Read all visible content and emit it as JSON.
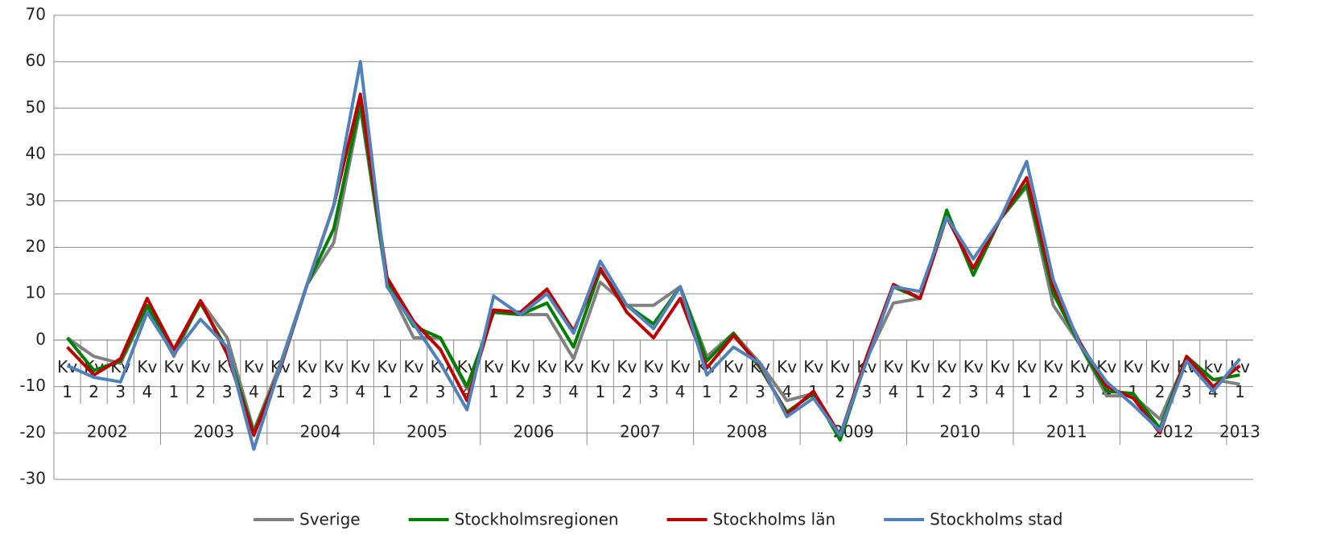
{
  "chart_data": {
    "type": "line",
    "groups": [
      {
        "name": "2002",
        "categories": [
          "Kv 1",
          "Kv 2",
          "Kv 3",
          "Kv 4"
        ]
      },
      {
        "name": "2003",
        "categories": [
          "Kv 1",
          "Kv 2",
          "Kv 3",
          "Kv 4"
        ]
      },
      {
        "name": "2004",
        "categories": [
          "Kv 1",
          "Kv 2",
          "Kv 3",
          "Kv 4"
        ]
      },
      {
        "name": "2005",
        "categories": [
          "Kv 1",
          "Kv 2",
          "Kv 3",
          "Kv 4"
        ]
      },
      {
        "name": "2006",
        "categories": [
          "Kv 1",
          "Kv 2",
          "Kv 3",
          "Kv 4"
        ]
      },
      {
        "name": "2007",
        "categories": [
          "Kv 1",
          "Kv 2",
          "Kv 3",
          "Kv 4"
        ]
      },
      {
        "name": "2008",
        "categories": [
          "Kv 1",
          "Kv 2",
          "Kv 3",
          "Kv 4"
        ]
      },
      {
        "name": "2009",
        "categories": [
          "Kv 1",
          "Kv 2",
          "Kv 3",
          "Kv 4"
        ]
      },
      {
        "name": "2010",
        "categories": [
          "Kv 1",
          "Kv 2",
          "Kv 3",
          "Kv 4"
        ]
      },
      {
        "name": "2011",
        "categories": [
          "Kv 1",
          "Kv 2",
          "Kv 3",
          "Kv 4"
        ]
      },
      {
        "name": "2012",
        "categories": [
          "Kv 1",
          "Kv 2",
          "Kv 3",
          "kv 4"
        ]
      },
      {
        "name": "2013",
        "categories": [
          "Kv 1"
        ]
      }
    ],
    "series": [
      {
        "name": "Sverige",
        "color": "#808080",
        "values": [
          0.5,
          -3.5,
          -5,
          7,
          -3.5,
          8.5,
          0.5,
          -19.5,
          -5,
          12,
          21,
          50,
          12,
          0.5,
          0.5,
          -10.5,
          6,
          5.5,
          5.5,
          -4,
          12.5,
          7.5,
          7.5,
          11.5,
          -3.5,
          1.5,
          -5,
          -13,
          -11.5,
          -21,
          -4,
          8,
          9,
          27.5,
          14,
          26,
          33,
          7.5,
          -1,
          -12,
          -12,
          -17,
          -4,
          -8.5,
          -9.5
        ]
      },
      {
        "name": "Stockholmsregionen",
        "color": "#008000",
        "values": [
          0.5,
          -6.5,
          -4.5,
          7.5,
          -2.5,
          8,
          -2,
          -20,
          -6,
          12,
          24,
          51,
          12.5,
          3,
          0.5,
          -10,
          6,
          5.5,
          8,
          -1.5,
          15,
          7.5,
          3.5,
          11.5,
          -4.5,
          1.5,
          -6,
          -15.5,
          -11.5,
          -21.5,
          -4,
          11.5,
          9,
          28,
          14,
          26,
          33.5,
          10,
          -1,
          -11,
          -11.5,
          -19,
          -3.5,
          -8.5,
          -7.5
        ]
      },
      {
        "name": "Stockholms län",
        "color": "#c00000",
        "values": [
          -1.5,
          -7.5,
          -4,
          9,
          -2,
          8.5,
          -3,
          -20.5,
          -6,
          12,
          29,
          53,
          13.5,
          4,
          -2,
          -13,
          6.5,
          6,
          11,
          2,
          15.5,
          6,
          0.5,
          9,
          -6,
          1,
          -5.5,
          -16,
          -11,
          -20.5,
          -3.5,
          12,
          9,
          26.5,
          15.5,
          26,
          35,
          11.5,
          -0.5,
          -10,
          -12.5,
          -20,
          -3.5,
          -10,
          -5.5
        ]
      },
      {
        "name": "Stockholms stad",
        "color": "#4f81bd",
        "values": [
          -5.5,
          -8,
          -9,
          6,
          -3,
          4.5,
          -1.5,
          -23.5,
          -5.5,
          12,
          29,
          60,
          11.5,
          3.5,
          -5,
          -15,
          9.5,
          5.5,
          10,
          1.5,
          17,
          7.5,
          2.5,
          11.5,
          -7.5,
          -1.5,
          -5,
          -16.5,
          -12.5,
          -20.5,
          -4.5,
          11.5,
          10.5,
          26.5,
          17.5,
          26,
          38.5,
          13,
          -1,
          -9,
          -14,
          -19.5,
          -4.5,
          -11,
          -4
        ]
      }
    ],
    "ylim": [
      -30,
      70
    ],
    "yticks": [
      -30,
      -20,
      -10,
      0,
      10,
      20,
      30,
      40,
      50,
      60,
      70
    ],
    "grid": true,
    "legend": "bottom"
  }
}
